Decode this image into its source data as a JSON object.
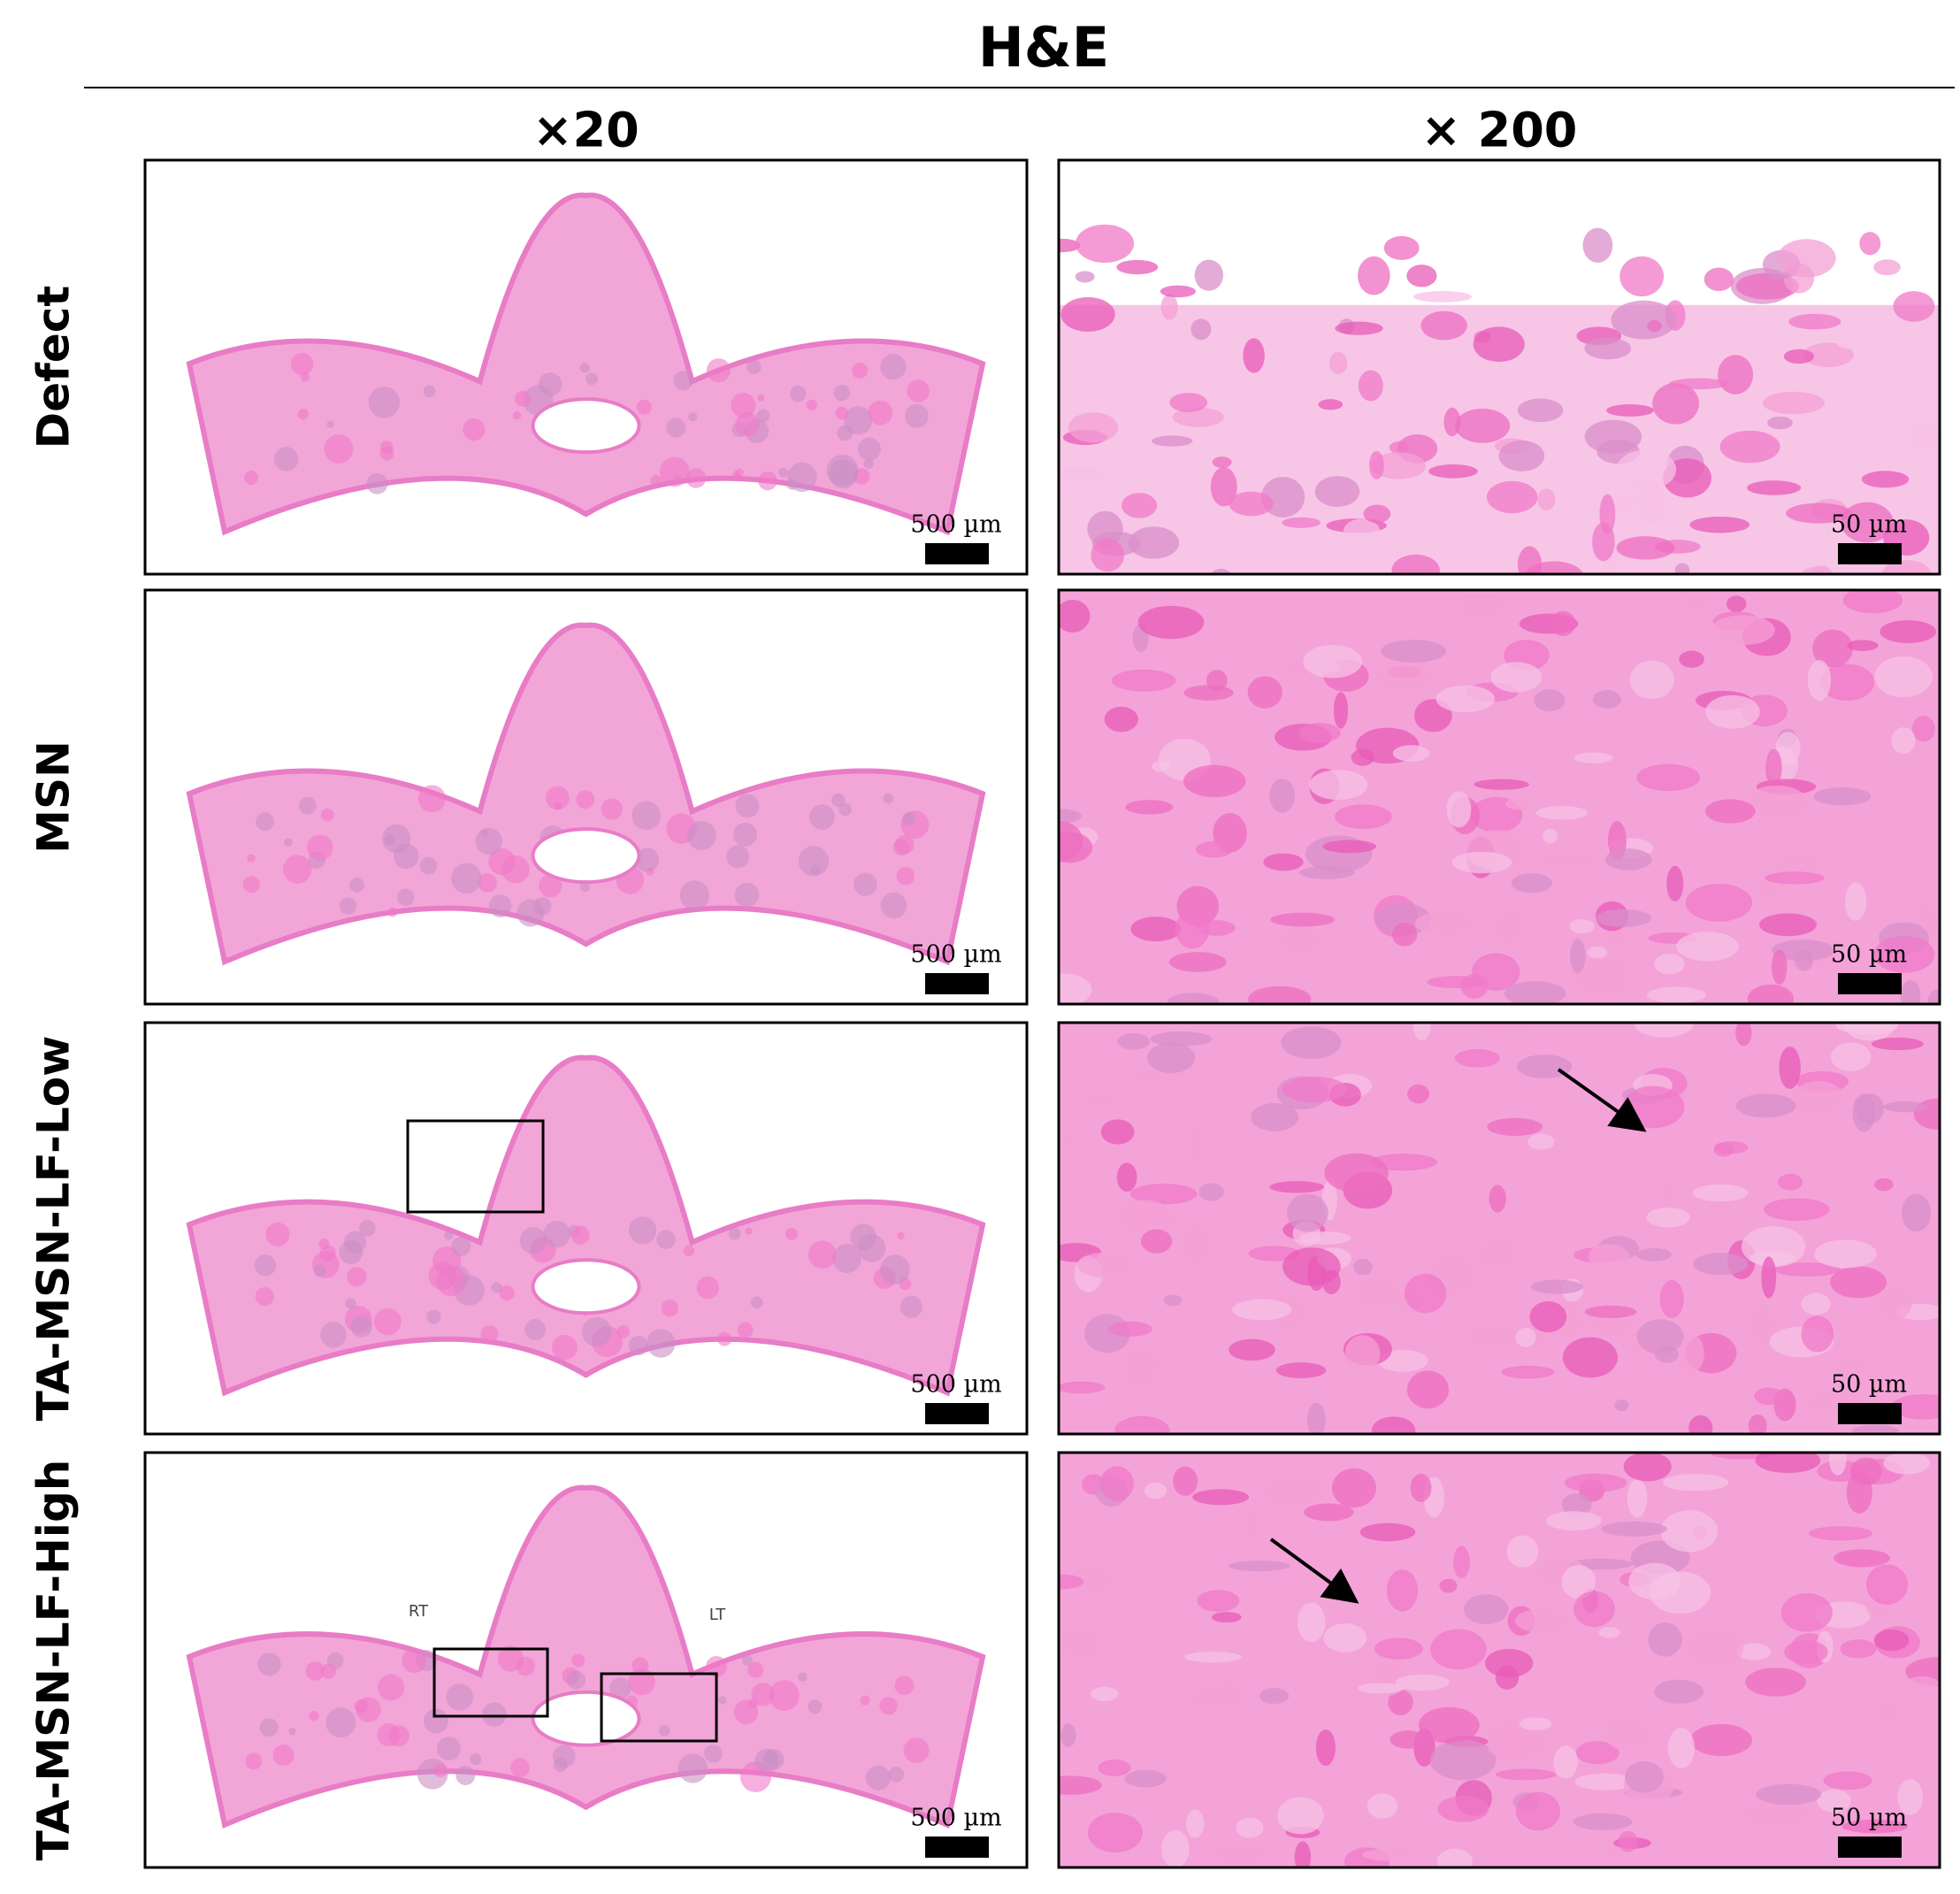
{
  "title": "H&E",
  "columns": [
    "×20",
    "× 200"
  ],
  "rows": [
    {
      "label": "Defect",
      "scale_bars": [
        "500 µm",
        "50 µm"
      ]
    },
    {
      "label": "MSN",
      "scale_bars": [
        "500 µm",
        "50 µm"
      ]
    },
    {
      "label": "TA-MSN-LF-Low",
      "scale_bars": [
        "500 µm",
        "50 µm"
      ]
    },
    {
      "label": "TA-MSN-LF-High",
      "scale_bars": [
        "500 µm",
        "50 µm"
      ]
    }
  ],
  "annotations": [
    "RT",
    "LT"
  ]
}
